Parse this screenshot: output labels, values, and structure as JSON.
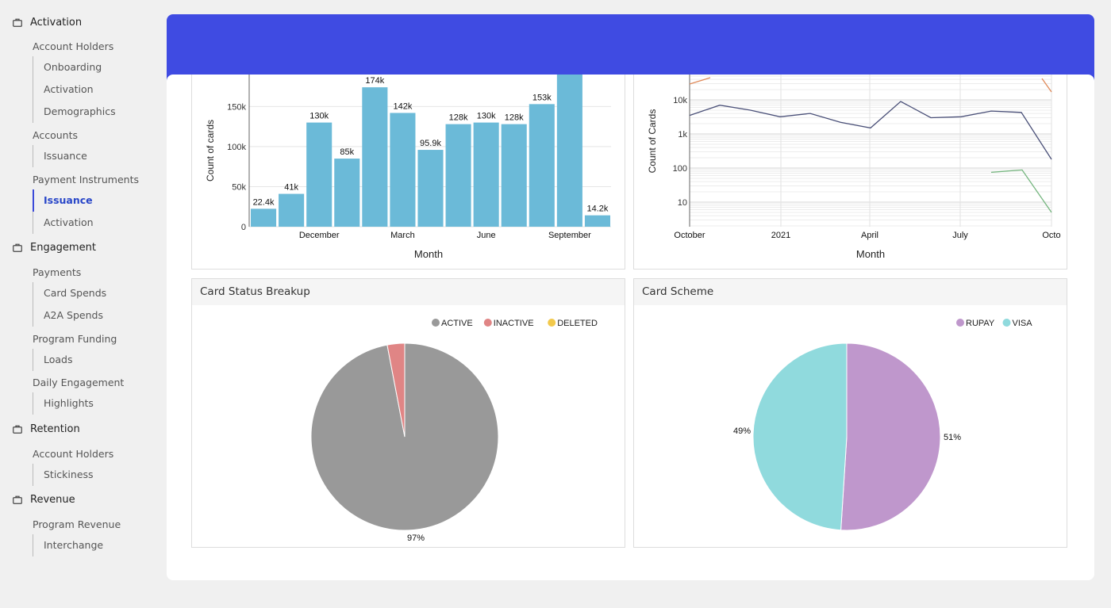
{
  "sidebar": {
    "sections": [
      {
        "label": "Activation",
        "groups": [
          {
            "label": "Account Holders",
            "items": [
              "Onboarding",
              "Activation",
              "Demographics"
            ]
          },
          {
            "label": "Accounts",
            "items": [
              "Issuance"
            ]
          },
          {
            "label": "Payment Instruments",
            "items": [
              "Issuance",
              "Activation"
            ]
          }
        ]
      },
      {
        "label": "Engagement",
        "groups": [
          {
            "label": "Payments",
            "items": [
              "Card Spends",
              "A2A Spends"
            ]
          },
          {
            "label": "Program Funding",
            "items": [
              "Loads"
            ]
          },
          {
            "label": "Daily Engagement",
            "items": [
              "Highlights"
            ]
          }
        ]
      },
      {
        "label": "Retention",
        "groups": [
          {
            "label": "Account Holders",
            "items": [
              "Stickiness"
            ]
          }
        ]
      },
      {
        "label": "Revenue",
        "groups": [
          {
            "label": "Program Revenue",
            "items": [
              "Interchange"
            ]
          }
        ]
      }
    ],
    "active_item": "Issuance"
  },
  "panels": {
    "status_title": "Card Status Breakup",
    "scheme_title": "Card Scheme"
  },
  "colors": {
    "accent": "#3f4be2",
    "bar": "#6bbad8",
    "active": "#999999",
    "inactive": "#e08585",
    "deleted": "#f2c94c",
    "rupay": "#bf97cc",
    "visa": "#90dadd"
  },
  "chart_data": [
    {
      "type": "bar",
      "ylabel": "Count of cards",
      "xlabel": "Month",
      "x_tick_labels": [
        "December",
        "March",
        "June",
        "September"
      ],
      "y_tick_labels": [
        "0",
        "50k",
        "100k",
        "150k"
      ],
      "values": [
        22400,
        41000,
        130000,
        85000,
        174000,
        142000,
        95900,
        128000,
        130000,
        128000,
        153000,
        195000,
        14200
      ],
      "data_labels": [
        "22.4k",
        "41k",
        "130k",
        "85k",
        "174k",
        "142k",
        "95.9k",
        "128k",
        "130k",
        "128k",
        "153k",
        "",
        "14.2k"
      ],
      "ylim": [
        0,
        185000
      ]
    },
    {
      "type": "line",
      "ylabel": "Count of Cards",
      "xlabel": "Month",
      "yscale": "log",
      "x_tick_labels": [
        "October",
        "2021",
        "April",
        "July",
        "Octo"
      ],
      "y_tick_labels": [
        "10",
        "100",
        "1k",
        "10k"
      ],
      "series": [
        {
          "color": "#4a5078",
          "values": [
            3500,
            7000,
            5000,
            3200,
            4000,
            2200,
            1500,
            9000,
            3000,
            3200,
            4700,
            4300,
            180
          ]
        },
        {
          "color": "#74b57e",
          "values": [
            75,
            88,
            5
          ]
        },
        {
          "color": "#e08a5a",
          "values": []
        }
      ]
    },
    {
      "type": "pie",
      "legend": [
        "ACTIVE",
        "INACTIVE",
        "DELETED"
      ],
      "values": [
        97,
        3,
        0
      ],
      "data_labels": [
        "97%"
      ]
    },
    {
      "type": "pie",
      "legend": [
        "RUPAY",
        "VISA"
      ],
      "values": [
        51,
        49
      ],
      "data_labels": [
        "51%",
        "49%"
      ]
    }
  ]
}
